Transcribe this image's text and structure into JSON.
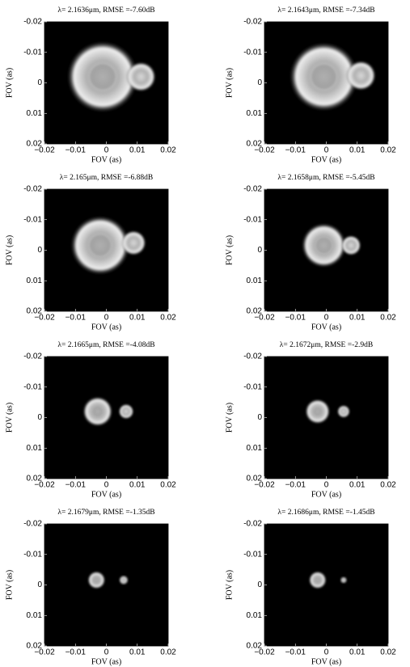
{
  "chart_data": [
    {
      "type": "image",
      "title": "λ= 2.1636μm, RMSE =-7.60dB",
      "xlabel": "FOV (as)",
      "ylabel": "FOV (as)",
      "xlim": [
        -0.02,
        0.02
      ],
      "ylim": [
        0.02,
        -0.02
      ],
      "xticks": [
        {
          "value": -0.02,
          "label": "−0.02"
        },
        {
          "value": -0.01,
          "label": "−0.01"
        },
        0,
        0.01,
        0.02
      ],
      "yticks": [
        -0.02,
        -0.01,
        0,
        0.01,
        0.02
      ]
    },
    {
      "type": "image",
      "title": "λ= 2.1643μm, RMSE =-7.34dB",
      "xlabel": "FOV (as)",
      "ylabel": "FOV (as)",
      "xlim": [
        -0.02,
        0.02
      ],
      "ylim": [
        0.02,
        -0.02
      ],
      "xticks": [
        {
          "value": -0.02,
          "label": "−0.02"
        },
        {
          "value": -0.01,
          "label": "−0.01"
        },
        0,
        0.01,
        0.02
      ],
      "yticks": [
        -0.02,
        -0.01,
        0,
        0.01,
        0.02
      ]
    },
    {
      "type": "image",
      "title": "λ= 2.165μm, RMSE =-6.88dB",
      "xlabel": "FOV (as)",
      "ylabel": "FOV (as)",
      "xlim": [
        -0.02,
        0.02
      ],
      "ylim": [
        0.02,
        -0.02
      ],
      "xticks": [
        {
          "value": -0.02,
          "label": "−0.02"
        },
        {
          "value": -0.01,
          "label": "−0.01"
        },
        0,
        0.01,
        0.02
      ],
      "yticks": [
        -0.02,
        -0.01,
        0,
        0.01,
        0.02
      ]
    },
    {
      "type": "image",
      "title": "λ= 2.1658μm, RMSE =-5.45dB",
      "xlabel": "FOV (as)",
      "ylabel": "FOV (as)",
      "xlim": [
        -0.02,
        0.02
      ],
      "ylim": [
        0.02,
        -0.02
      ],
      "xticks": [
        {
          "value": -0.02,
          "label": "−0.02"
        },
        {
          "value": -0.01,
          "label": "−0.01"
        },
        0,
        0.01,
        0.02
      ],
      "yticks": [
        -0.02,
        -0.01,
        0,
        0.01,
        0.02
      ]
    },
    {
      "type": "image",
      "title": "λ= 2.1665μm, RMSE =-4.08dB",
      "xlabel": "FOV (as)",
      "ylabel": "FOV (as)",
      "xlim": [
        -0.02,
        0.02
      ],
      "ylim": [
        0.02,
        -0.02
      ],
      "xticks": [
        {
          "value": -0.02,
          "label": "−0.02"
        },
        {
          "value": -0.01,
          "label": "−0.01"
        },
        0,
        0.01,
        0.02
      ],
      "yticks": [
        -0.02,
        -0.01,
        0,
        0.01,
        0.02
      ]
    },
    {
      "type": "image",
      "title": "λ= 2.1672μm, RMSE =-2.9dB",
      "xlabel": "FOV (as)",
      "ylabel": "FOV (as)",
      "xlim": [
        -0.02,
        0.02
      ],
      "ylim": [
        0.02,
        -0.02
      ],
      "xticks": [
        {
          "value": -0.02,
          "label": "−0.02"
        },
        {
          "value": -0.01,
          "label": "−0.01"
        },
        0,
        0.01,
        0.02
      ],
      "yticks": [
        -0.02,
        -0.01,
        0,
        0.01,
        0.02
      ]
    },
    {
      "type": "image",
      "title": "λ= 2.1679μm, RMSE =-1.35dB",
      "xlabel": "FOV (as)",
      "ylabel": "FOV (as)",
      "xlim": [
        -0.02,
        0.02
      ],
      "ylim": [
        0.02,
        -0.02
      ],
      "xticks": [
        {
          "value": -0.02,
          "label": "−0.02"
        },
        {
          "value": -0.01,
          "label": "−0.01"
        },
        0,
        0.01,
        0.02
      ],
      "yticks": [
        -0.02,
        -0.01,
        0,
        0.01,
        0.02
      ]
    },
    {
      "type": "image",
      "title": "λ= 2.1686μm, RMSE =-1.45dB",
      "xlabel": "FOV (as)",
      "ylabel": "FOV (as)",
      "xlim": [
        -0.02,
        0.02
      ],
      "ylim": [
        0.02,
        -0.02
      ],
      "xticks": [
        {
          "value": -0.02,
          "label": "−0.02"
        },
        {
          "value": -0.01,
          "label": "−0.01"
        },
        0,
        0.01,
        0.02
      ],
      "yticks": [
        -0.02,
        -0.01,
        0,
        0.01,
        0.02
      ]
    }
  ]
}
